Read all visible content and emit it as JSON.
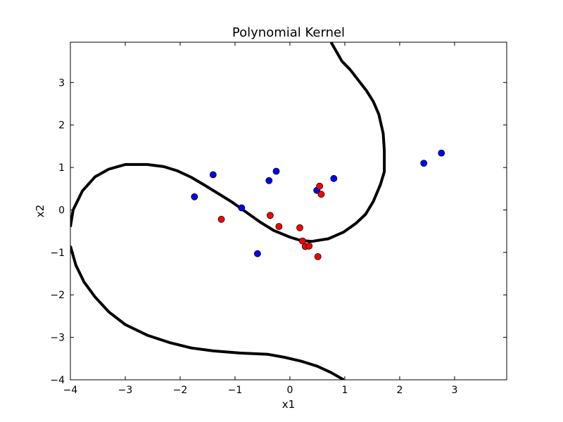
{
  "chart_data": {
    "type": "scatter",
    "title": "Polynomial Kernel",
    "xlabel": "x1",
    "ylabel": "x2",
    "xlim": [
      -4,
      3.95
    ],
    "ylim": [
      -4,
      3.95
    ],
    "xticks": [
      -4,
      -3,
      -2,
      -1,
      0,
      1,
      2,
      3
    ],
    "yticks": [
      -4,
      -3,
      -2,
      -1,
      0,
      1,
      2,
      3
    ],
    "xtick_labels": [
      "−4",
      "−3",
      "−2",
      "−1",
      "0",
      "1",
      "2",
      "3"
    ],
    "ytick_labels": [
      "−4",
      "−3",
      "−2",
      "−1",
      "0",
      "1",
      "2",
      "3"
    ],
    "grid": false,
    "colors": {
      "class_a": "#0000ff",
      "class_b": "#ff0000",
      "boundary": "#000000"
    },
    "series": [
      {
        "color": "#0000ff",
        "points": [
          [
            -1.74,
            0.31
          ],
          [
            -1.4,
            0.83
          ],
          [
            -0.88,
            0.05
          ],
          [
            -0.38,
            0.69
          ],
          [
            -0.25,
            0.91
          ],
          [
            0.49,
            0.46
          ],
          [
            0.8,
            0.74
          ],
          [
            -0.59,
            -1.03
          ],
          [
            2.44,
            1.1
          ],
          [
            2.76,
            1.34
          ]
        ]
      },
      {
        "color": "#ff0000",
        "points": [
          [
            -1.25,
            -0.22
          ],
          [
            -0.36,
            -0.13
          ],
          [
            -0.2,
            -0.39
          ],
          [
            0.18,
            -0.42
          ],
          [
            0.23,
            -0.73
          ],
          [
            0.28,
            -0.86
          ],
          [
            0.35,
            -0.85
          ],
          [
            0.51,
            -1.1
          ],
          [
            0.54,
            0.56
          ],
          [
            0.57,
            0.37
          ]
        ]
      }
    ],
    "boundary": [
      [
        [
          0.75,
          3.95
        ],
        [
          0.95,
          3.5
        ],
        [
          1.1,
          3.3
        ],
        [
          1.25,
          3.05
        ],
        [
          1.4,
          2.8
        ],
        [
          1.52,
          2.55
        ],
        [
          1.62,
          2.25
        ],
        [
          1.7,
          1.8
        ],
        [
          1.72,
          1.4
        ],
        [
          1.72,
          0.9
        ],
        [
          1.65,
          0.6
        ],
        [
          1.52,
          0.2
        ],
        [
          1.38,
          -0.1
        ],
        [
          1.2,
          -0.32
        ],
        [
          0.98,
          -0.52
        ],
        [
          0.7,
          -0.68
        ],
        [
          0.4,
          -0.74
        ],
        [
          0.2,
          -0.72
        ],
        [
          0.0,
          -0.64
        ],
        [
          -0.3,
          -0.48
        ],
        [
          -0.55,
          -0.28
        ],
        [
          -0.8,
          -0.05
        ],
        [
          -1.05,
          0.18
        ],
        [
          -1.3,
          0.38
        ],
        [
          -1.55,
          0.58
        ],
        [
          -1.8,
          0.77
        ],
        [
          -2.05,
          0.92
        ],
        [
          -2.3,
          1.02
        ],
        [
          -2.6,
          1.07
        ],
        [
          -3.0,
          1.07
        ],
        [
          -3.3,
          0.96
        ],
        [
          -3.55,
          0.78
        ],
        [
          -3.78,
          0.45
        ],
        [
          -3.95,
          0.0
        ],
        [
          -4.0,
          -0.4
        ]
      ],
      [
        [
          -4.0,
          -0.85
        ],
        [
          -3.9,
          -1.3
        ],
        [
          -3.75,
          -1.7
        ],
        [
          -3.55,
          -2.05
        ],
        [
          -3.3,
          -2.4
        ],
        [
          -3.0,
          -2.7
        ],
        [
          -2.6,
          -2.95
        ],
        [
          -2.2,
          -3.12
        ],
        [
          -1.8,
          -3.25
        ],
        [
          -1.4,
          -3.32
        ],
        [
          -0.9,
          -3.37
        ],
        [
          -0.4,
          -3.4
        ],
        [
          -0.1,
          -3.47
        ],
        [
          0.2,
          -3.56
        ],
        [
          0.5,
          -3.68
        ],
        [
          0.75,
          -3.83
        ],
        [
          0.98,
          -4.0
        ]
      ]
    ]
  }
}
